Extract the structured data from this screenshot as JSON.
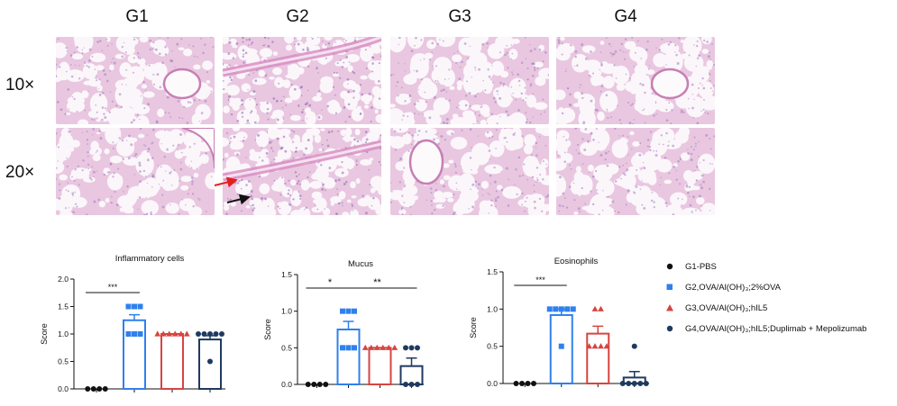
{
  "columns": [
    "G1",
    "G2",
    "G3",
    "G4"
  ],
  "rows": [
    "10×",
    "20×"
  ],
  "histology_arrows": [
    {
      "name": "red-arrow",
      "color": "#e41f1f"
    },
    {
      "name": "black-arrow",
      "color": "#111111"
    }
  ],
  "legend": [
    {
      "label": "G1-PBS",
      "marker": "circle",
      "color": "#111111"
    },
    {
      "label": "G2,OVA/Al(OH)₃;2%OVA",
      "marker": "square",
      "color": "#2f80ed"
    },
    {
      "label": "G3,OVA/Al(OH)₃;hIL5",
      "marker": "triangle",
      "color": "#d64541"
    },
    {
      "label": "G4,OVA/Al(OH)₃;hIL5;Duplimab + Mepolizumab",
      "marker": "circle",
      "color": "#1f3a5f"
    }
  ],
  "chart_data": [
    {
      "type": "bar",
      "title": "Inflammatory cells",
      "ylabel": "Score",
      "xlabel": "",
      "ylim": [
        0,
        2.0
      ],
      "yticks": [
        "0.0",
        "0.5",
        "1.0",
        "1.5",
        "2.0"
      ],
      "categories": [
        "G1",
        "G2",
        "G3",
        "G4"
      ],
      "values": [
        0,
        1.25,
        1.0,
        0.9
      ],
      "errors": [
        0,
        0.1,
        0,
        0.07
      ],
      "points": [
        [
          0,
          0,
          0,
          0
        ],
        [
          1.5,
          1.5,
          1.5,
          1.0,
          1.0,
          1.0
        ],
        [
          1.0,
          1.0,
          1.0,
          1.0,
          1.0,
          1.0
        ],
        [
          1.0,
          1.0,
          1.0,
          1.0,
          1.0,
          0.5
        ]
      ],
      "significance": [
        {
          "from": 0,
          "to": 1,
          "label": "***"
        }
      ]
    },
    {
      "type": "bar",
      "title": "Mucus",
      "ylabel": "Score",
      "xlabel": "",
      "ylim": [
        0,
        1.5
      ],
      "yticks": [
        "0.0",
        "0.5",
        "1.0",
        "1.5"
      ],
      "categories": [
        "G1",
        "G2",
        "G3",
        "G4"
      ],
      "values": [
        0,
        0.75,
        0.5,
        0.25
      ],
      "errors": [
        0,
        0.11,
        0,
        0.11
      ],
      "points": [
        [
          0,
          0,
          0,
          0
        ],
        [
          1.0,
          1.0,
          1.0,
          0.5,
          0.5,
          0.5
        ],
        [
          0.5,
          0.5,
          0.5,
          0.5,
          0.5,
          0.5
        ],
        [
          0.5,
          0.5,
          0.5,
          0,
          0,
          0
        ]
      ],
      "significance": [
        {
          "from": 0,
          "to": 1,
          "label": "*"
        },
        {
          "from": 1,
          "to": 3,
          "label": "**"
        }
      ]
    },
    {
      "type": "bar",
      "title": "Eosinophils",
      "ylabel": "Score",
      "xlabel": "",
      "ylim": [
        0,
        1.5
      ],
      "yticks": [
        "0.0",
        "0.5",
        "1.0",
        "1.5"
      ],
      "categories": [
        "G1",
        "G2",
        "G3",
        "G4"
      ],
      "values": [
        0,
        0.92,
        0.67,
        0.08
      ],
      "errors": [
        0,
        0.08,
        0.1,
        0.08
      ],
      "points": [
        [
          0,
          0,
          0,
          0
        ],
        [
          1.0,
          1.0,
          1.0,
          1.0,
          1.0,
          0.5
        ],
        [
          1.0,
          1.0,
          0.5,
          0.5,
          0.5,
          0.5
        ],
        [
          0.5,
          0,
          0,
          0,
          0,
          0
        ]
      ],
      "significance": [
        {
          "from": 0,
          "to": 1,
          "label": "***"
        }
      ]
    }
  ]
}
